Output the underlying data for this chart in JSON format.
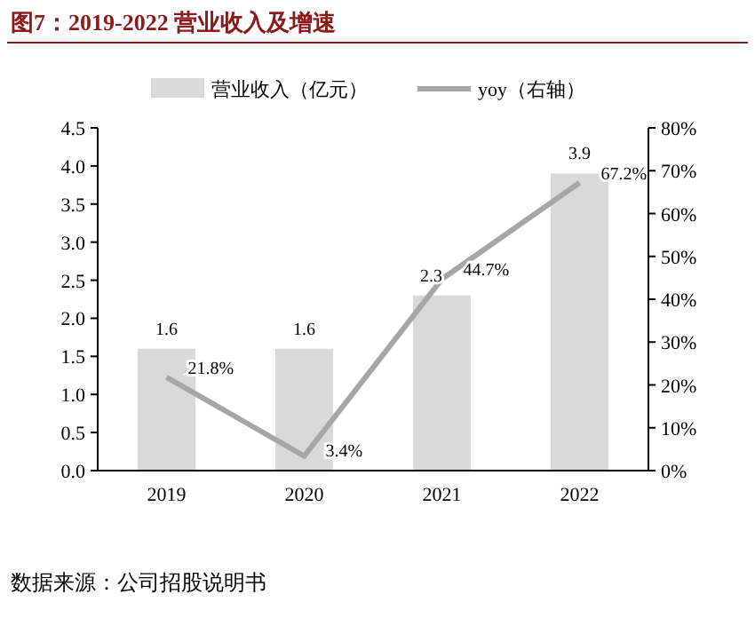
{
  "chart_data": {
    "type": "bar",
    "title": "图7：2019-2022 营业收入及增速",
    "categories": [
      "2019",
      "2020",
      "2021",
      "2022"
    ],
    "series": [
      {
        "name": "营业收入（亿元）",
        "color": "#d9d9d9",
        "values": [
          1.6,
          1.6,
          2.3,
          3.9
        ],
        "value_labels": [
          "1.6",
          "1.6",
          "2.3",
          "3.9"
        ]
      },
      {
        "name": "yoy（右轴）",
        "type": "line",
        "axis": "y2",
        "color": "#a6a6a6",
        "values": [
          21.8,
          3.4,
          44.7,
          67.2
        ],
        "value_labels": [
          "21.8%",
          "3.4%",
          "44.7%",
          "67.2%"
        ]
      }
    ],
    "ylim": [
      0,
      4.5
    ],
    "yticks": [
      {
        "value": 0,
        "label": "0.0"
      },
      0.5,
      {
        "value": 1,
        "label": "1.0"
      },
      1.5,
      {
        "value": 2,
        "label": "2.0"
      },
      2.5,
      {
        "value": 3,
        "label": "3.0"
      },
      3.5,
      {
        "value": 4,
        "label": "4.0"
      },
      4.5
    ],
    "y2lim": [
      0,
      80
    ],
    "y2ticks": [
      {
        "value": 0,
        "label": "0%"
      },
      {
        "value": 10,
        "label": "10%"
      },
      {
        "value": 20,
        "label": "20%"
      },
      {
        "value": 30,
        "label": "30%"
      },
      {
        "value": 40,
        "label": "40%"
      },
      {
        "value": 50,
        "label": "50%"
      },
      {
        "value": 60,
        "label": "60%"
      },
      {
        "value": 70,
        "label": "70%"
      },
      {
        "value": 80,
        "label": "80%"
      }
    ],
    "legend": "top",
    "grid": false,
    "marker": "none",
    "annotations": [
      "数据来源：公司招股说明书"
    ]
  }
}
